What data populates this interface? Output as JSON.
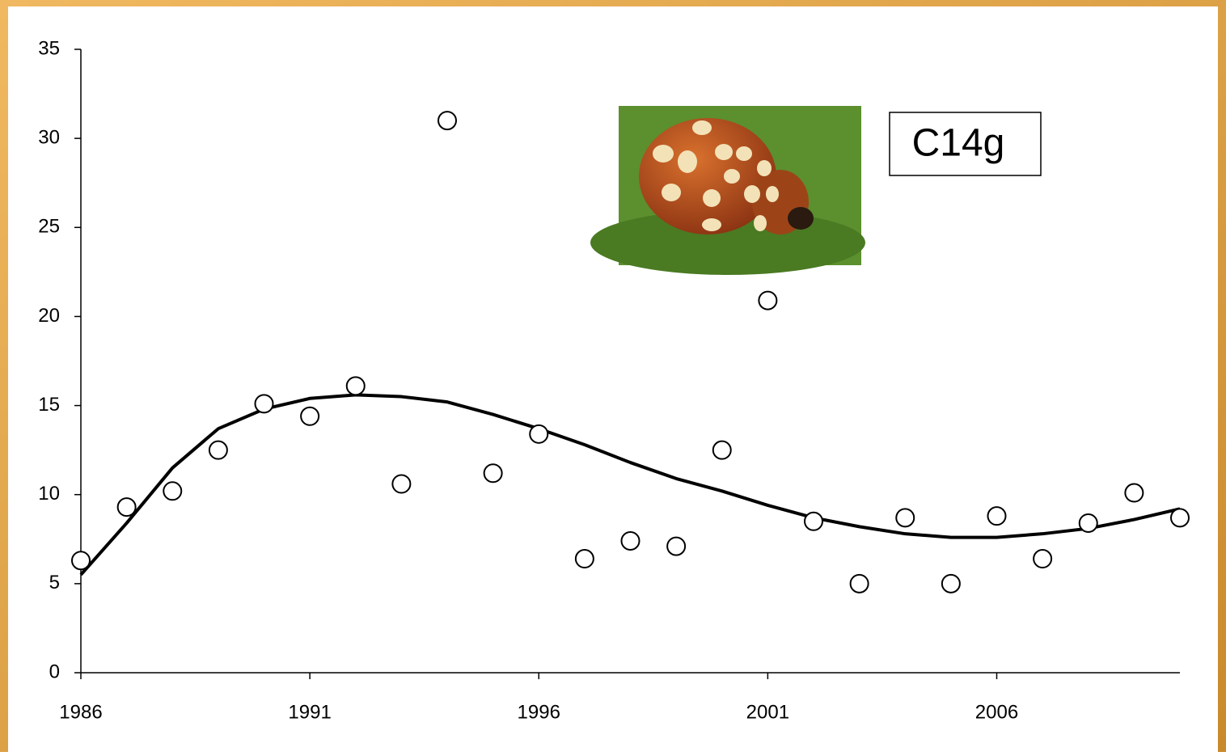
{
  "chart_data": {
    "type": "scatter",
    "x": [
      1986,
      1987,
      1988,
      1989,
      1990,
      1991,
      1992,
      1993,
      1994,
      1995,
      1996,
      1997,
      1998,
      1999,
      2000,
      2001,
      2002,
      2003,
      2004,
      2005,
      2006,
      2007,
      2008,
      2009,
      2010
    ],
    "series": [
      {
        "style": "markers",
        "color": "#000000",
        "values": [
          6.3,
          9.3,
          10.2,
          12.5,
          15.1,
          14.4,
          16.1,
          10.6,
          31.0,
          11.2,
          13.4,
          6.4,
          7.4,
          7.1,
          12.5,
          20.9,
          8.5,
          5.0,
          8.7,
          5.0,
          8.8,
          6.4,
          8.4,
          10.1,
          8.7
        ]
      },
      {
        "style": "line",
        "color": "#000000",
        "values": [
          5.5,
          8.4,
          11.5,
          13.7,
          14.8,
          15.4,
          15.6,
          15.5,
          15.2,
          14.5,
          13.7,
          12.8,
          11.8,
          10.9,
          10.2,
          9.4,
          8.7,
          8.2,
          7.8,
          7.6,
          7.6,
          7.8,
          8.1,
          8.6,
          9.2
        ]
      }
    ],
    "xlim": [
      1986,
      2010
    ],
    "xticks": [
      1986,
      1991,
      1996,
      2001,
      2006
    ],
    "ylim": [
      0,
      35
    ],
    "yticks": [
      0,
      5,
      10,
      15,
      20,
      25,
      30,
      35
    ],
    "annotation": "C14g"
  }
}
